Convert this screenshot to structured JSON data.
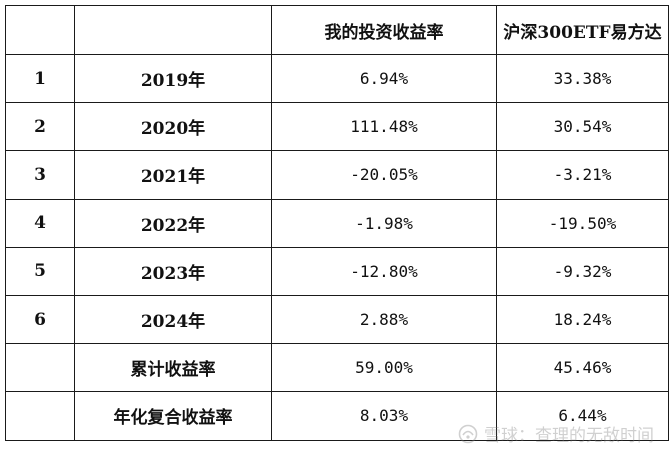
{
  "table": {
    "headers": {
      "index": "",
      "year": "",
      "mine": "我的投资收益率",
      "etf": "沪深300ETF易方达"
    },
    "rows": [
      {
        "index": "1",
        "year": "2019年",
        "mine": "6.94%",
        "etf": "33.38%"
      },
      {
        "index": "2",
        "year": "2020年",
        "mine": "111.48%",
        "etf": "30.54%"
      },
      {
        "index": "3",
        "year": "2021年",
        "mine": "-20.05%",
        "etf": "-3.21%"
      },
      {
        "index": "4",
        "year": "2022年",
        "mine": "-1.98%",
        "etf": "-19.50%"
      },
      {
        "index": "5",
        "year": "2023年",
        "mine": "-12.80%",
        "etf": "-9.32%"
      },
      {
        "index": "6",
        "year": "2024年",
        "mine": "2.88%",
        "etf": "18.24%"
      }
    ],
    "summary": [
      {
        "label": "累计收益率",
        "mine": "59.00%",
        "etf": "45.46%"
      },
      {
        "label": "年化复合收益率",
        "mine": "8.03%",
        "etf": "6.44%"
      }
    ]
  },
  "watermark": {
    "icon": "snowball-logo-icon",
    "text": "雪球：查理的无敌时间"
  }
}
